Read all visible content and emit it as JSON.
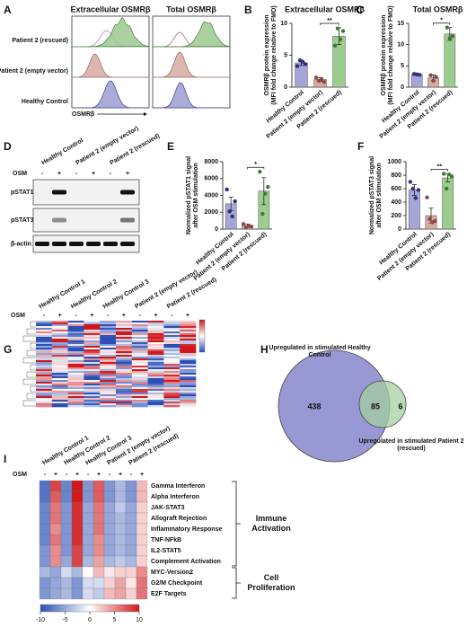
{
  "chart_data": [
    {
      "type": "flow",
      "panel": "A",
      "titles": [
        "Extracellular OSMRβ",
        "Total OSMRβ"
      ],
      "rows": [
        "Patient 2 (rescued)",
        "Patient 2 (empty vector)",
        "Healthy Control"
      ],
      "xlabel": "OSMRβ"
    },
    {
      "type": "bar",
      "panel": "B",
      "title": "Extracellular OSMRβ",
      "ylabel": [
        "OSMRβ protein expression",
        "(MFI fold change relative to FMO)"
      ],
      "categories": [
        "Healthy Control",
        "Patient 2 (empty vector)",
        "Patient 2 (rescued)"
      ],
      "values": [
        3.8,
        1.2,
        8
      ],
      "errors": [
        0.4,
        0.3,
        1.3
      ],
      "points": [
        [
          3.3,
          4.2,
          4.0,
          3.6
        ],
        [
          1.5,
          1.0,
          1.3,
          0.8
        ],
        [
          6.5,
          9.2,
          7.5,
          8.8
        ]
      ],
      "colors": [
        "#a5a5d8",
        "#d7a9a2",
        "#9ccc8e"
      ],
      "point_colors": [
        "#2f2f7a",
        "#8a4a45",
        "#3c7a33"
      ],
      "ylim": [
        0,
        10
      ],
      "yticks": [
        0,
        5,
        10
      ],
      "significance": "**"
    },
    {
      "type": "bar",
      "panel": "C",
      "title": "Total OSMRβ",
      "ylabel": [
        "OSMRβ protein expression",
        "(MFI fold change relative to FMO)"
      ],
      "categories": [
        "Healthy Control",
        "Patient 2 (empty vector)",
        "Patient 2 (rescued)"
      ],
      "values": [
        3,
        2.2,
        12.5
      ],
      "errors": [
        0.2,
        0.7,
        1.5
      ],
      "points": [
        [
          3.1,
          3.0,
          2.9
        ],
        [
          2.8,
          1.5,
          2.4
        ],
        [
          14,
          11.5,
          12
        ]
      ],
      "colors": [
        "#a5a5d8",
        "#d7a9a2",
        "#9ccc8e"
      ],
      "point_colors": [
        "#2f2f7a",
        "#8a4a45",
        "#3c7a33"
      ],
      "ylim": [
        0,
        15
      ],
      "yticks": [
        0,
        5,
        10,
        15
      ],
      "significance": "*"
    },
    {
      "type": "blot",
      "panel": "D",
      "lanes": [
        "Healthy Control",
        "Patient 2 (empty vector)",
        "Patient 2 (rescued)"
      ],
      "treatment": "OSM",
      "conditions": [
        "-",
        "+"
      ],
      "rows": [
        "pSTAT1",
        "pSTAT3",
        "β-actin"
      ]
    },
    {
      "type": "bar",
      "panel": "E",
      "ylabel": [
        "Normalized pSTAT1 signal",
        "after OSM stimulation"
      ],
      "categories": [
        "Healthy Control",
        "Patient 2 (empty vector)",
        "Patient 2 (rescued)"
      ],
      "values": [
        3000,
        400,
        4500
      ],
      "errors": [
        800,
        200,
        1600
      ],
      "points": [
        [
          4700,
          2100,
          1500,
          3300
        ],
        [
          600,
          200,
          400,
          300
        ],
        [
          6800,
          1800,
          4200,
          5000
        ]
      ],
      "colors": [
        "#a5a5d8",
        "#d7a9a2",
        "#9ccc8e"
      ],
      "point_colors": [
        "#2f2f7a",
        "#8a4a45",
        "#3c7a33"
      ],
      "ylim": [
        0,
        8000
      ],
      "yticks": [
        0,
        2000,
        4000,
        6000,
        8000
      ],
      "significance": "*"
    },
    {
      "type": "bar",
      "panel": "F",
      "ylabel": [
        "Normalized pSTAT3 signal",
        "after OSM stimulation"
      ],
      "categories": [
        "Healthy Control",
        "Patient 2 (empty vector)",
        "Patient 2 (rescued)"
      ],
      "values": [
        580,
        200,
        760
      ],
      "errors": [
        80,
        110,
        60
      ],
      "points": [
        [
          700,
          600,
          460,
          580
        ],
        [
          470,
          150,
          100,
          120
        ],
        [
          820,
          600,
          810,
          780
        ]
      ],
      "colors": [
        "#a5a5d8",
        "#d7a9a2",
        "#9ccc8e"
      ],
      "point_colors": [
        "#2f2f7a",
        "#8a4a45",
        "#3c7a33"
      ],
      "ylim": [
        0,
        1000
      ],
      "yticks": [
        0,
        200,
        400,
        600,
        800,
        1000
      ],
      "significance": "**"
    },
    {
      "type": "clustered-heatmap",
      "panel": "G",
      "columns": [
        "Healthy Control 1",
        "Healthy Control 2",
        "Healthy Control 3",
        "Patient 2 (empty vector)",
        "Patient 2 (rescued)"
      ],
      "treatment": "OSM",
      "conditions": [
        "-",
        "+"
      ]
    },
    {
      "type": "venn",
      "panel": "H",
      "sets": [
        "Upregulated in stimulated Healthy Control",
        "Upregulated in stimulated Patient 2 (rescued)"
      ],
      "values": [
        438,
        85,
        6
      ]
    },
    {
      "type": "heatmap",
      "panel": "I",
      "columns": [
        "Healthy Control 1",
        "Healthy Control 2",
        "Healthy Control 3",
        "Patient 2 (empty vector)",
        "Patient 2 (rescued)"
      ],
      "treatment": "OSM",
      "conditions": [
        "-",
        "+"
      ],
      "row_groups": [
        {
          "label": "Immune Activation",
          "rows": [
            "Gamma Interferon",
            "Alpha Interferon",
            "JAK-STAT3",
            "Allograft Rejection",
            "Inflammatory Response",
            "TNF-NFkB",
            "IL2-STAT5",
            "Complement Activation"
          ],
          "values": [
            [
              -8,
              8,
              -7,
              10,
              -6,
              7,
              -6,
              -4,
              -6,
              3
            ],
            [
              -8,
              7,
              -7,
              10,
              -6,
              7,
              -6,
              -4,
              -6,
              3
            ],
            [
              -7,
              6,
              -6,
              9,
              -5,
              6,
              -5,
              -3,
              -5,
              2
            ],
            [
              -7,
              6,
              -6,
              9,
              -5,
              6,
              -5,
              -4,
              -5,
              2
            ],
            [
              -7,
              5,
              -6,
              9,
              -5,
              6,
              -5,
              -4,
              -5,
              2
            ],
            [
              -7,
              6,
              -6,
              9,
              -5,
              5,
              -5,
              -4,
              -5,
              2
            ],
            [
              -6,
              5,
              -6,
              8,
              -5,
              5,
              -5,
              -4,
              -5,
              2
            ],
            [
              -6,
              5,
              -5,
              8,
              -4,
              4,
              -4,
              -3,
              -4,
              2
            ]
          ]
        },
        {
          "label": "Cell Proliferation",
          "rows": [
            "MYC-Version2",
            "G2/M Checkpoint",
            "E2F Targets"
          ],
          "values": [
            [
              -4,
              -5,
              -2,
              -4,
              0,
              3,
              1,
              2,
              2,
              5
            ],
            [
              -6,
              -5,
              -4,
              -6,
              -2,
              -2,
              2,
              4,
              1,
              6
            ],
            [
              -6,
              -5,
              -4,
              -6,
              -2,
              -3,
              3,
              4,
              2,
              6
            ]
          ]
        }
      ],
      "zlim": [
        -10,
        10
      ],
      "zticks": [
        -10,
        -5,
        0,
        5,
        10
      ],
      "colormap": [
        "#2c4fb5",
        "#ffffff",
        "#d0181c"
      ]
    }
  ]
}
